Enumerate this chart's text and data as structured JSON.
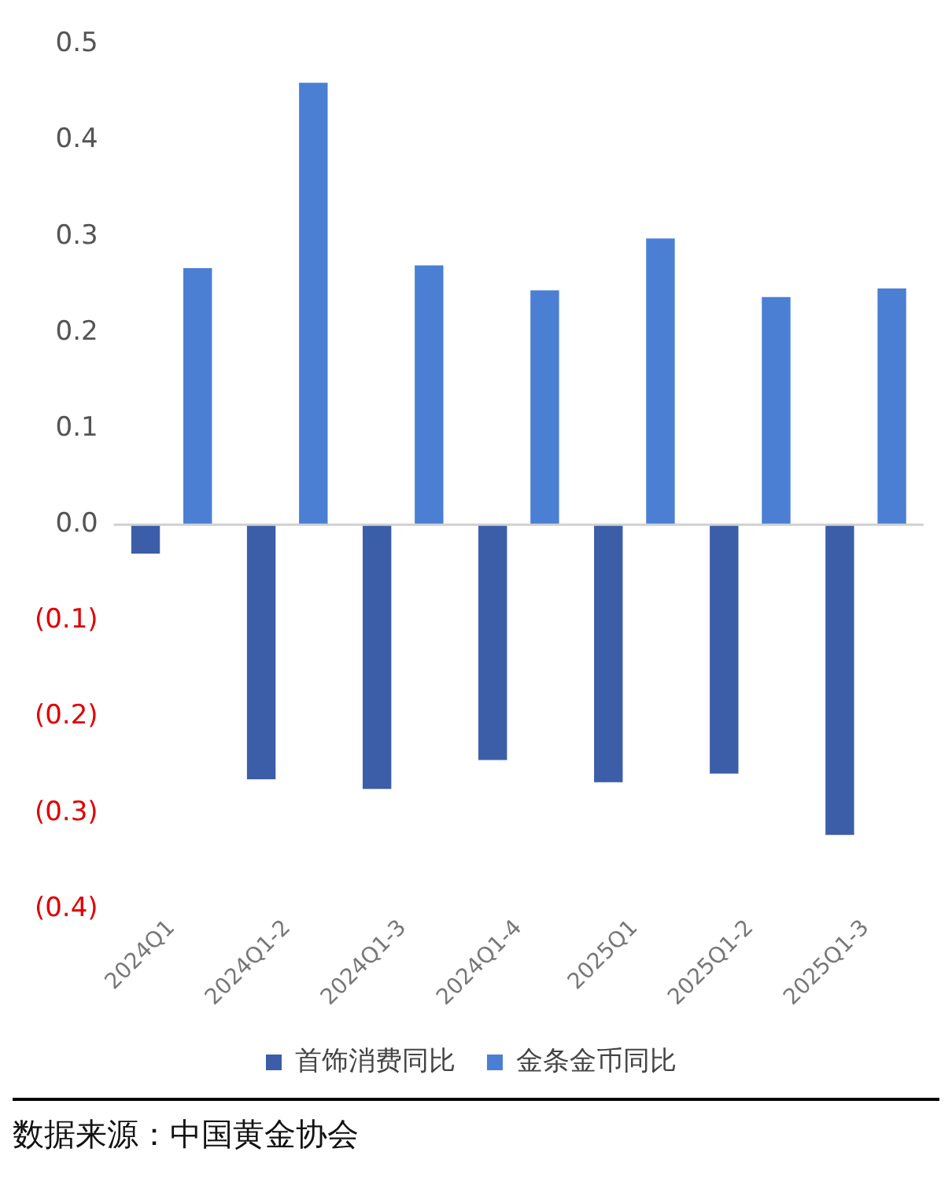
{
  "chart_data": {
    "type": "bar",
    "categories": [
      "2024Q1",
      "2024Q1-2",
      "2024Q1-3",
      "2024Q1-4",
      "2025Q1",
      "2025Q1-2",
      "2025Q1-3"
    ],
    "series": [
      {
        "name": "首饰消费同比",
        "color": "#3c5ea8",
        "values": [
          -0.03,
          -0.265,
          -0.275,
          -0.245,
          -0.268,
          -0.259,
          -0.323
        ]
      },
      {
        "name": "金条金币同比",
        "color": "#4a7fd4",
        "values": [
          0.267,
          0.46,
          0.27,
          0.244,
          0.298,
          0.237,
          0.246
        ]
      }
    ],
    "ylim": [
      -0.4,
      0.5
    ],
    "yticks": [
      {
        "value": -0.4,
        "label": "(0.4)"
      },
      {
        "value": -0.3,
        "label": "(0.3)"
      },
      {
        "value": -0.2,
        "label": "(0.2)"
      },
      {
        "value": -0.1,
        "label": "(0.1)"
      },
      {
        "value": 0,
        "label": "0.0"
      },
      {
        "value": 0.1,
        "label": "0.1"
      },
      {
        "value": 0.2,
        "label": "0.2"
      },
      {
        "value": 0.3,
        "label": "0.3"
      },
      {
        "value": 0.4,
        "label": "0.4"
      },
      {
        "value": 0.5,
        "label": "0.5"
      }
    ],
    "ref_lines": [
      {
        "axis": "y",
        "value": 0,
        "color": "#d0d0d0"
      }
    ],
    "grid": false,
    "legend": "bottom",
    "annotations": [
      "数据来源：中国黄金协会"
    ]
  }
}
